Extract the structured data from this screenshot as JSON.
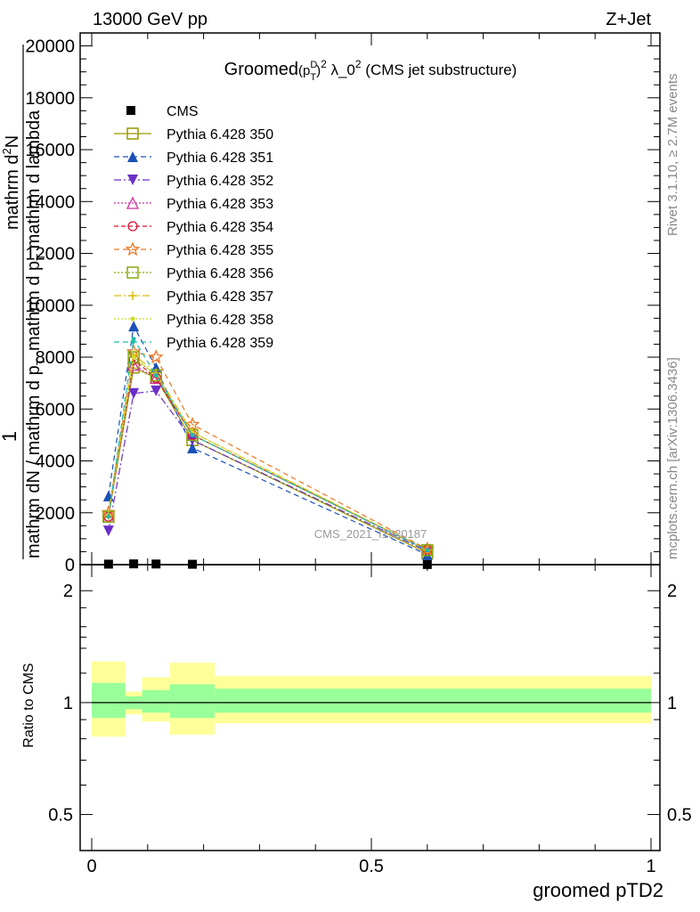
{
  "header": {
    "left": "13000 GeV pp",
    "right": "Z+Jet"
  },
  "plot_title": {
    "main": "Groomed",
    "formula_p": "(p",
    "formula_sup_D": "D",
    "formula_sub_T": "T",
    "formula_close": ")",
    "formula_sup_2": "2",
    "lambda_text": " λ_0",
    "lambda_sup": "2",
    "suffix": " (CMS jet substructure)"
  },
  "y_axis_label": {
    "one": "1",
    "frac_top": "mathrm dN / mathrm d p",
    "frac_top_sub": "T",
    "frac_bottom": "mathrm d",
    "frac_bottom_sup": "2",
    "frac_bottom_rest": "N",
    "frac_bottom_line2": "mathrm d p",
    "frac_bottom_line2_sub": "T",
    "frac_bottom_line2_rest": " mathrm d lambda"
  },
  "side_text": {
    "rivet": "Rivet 3.1.10, ≥ 2.7M events",
    "mcplots": "mcplots.cern.ch [arXiv:1306.3436]"
  },
  "watermark": "CMS_2021_I1920187",
  "ratio_ylabel": "Ratio to CMS",
  "x_axis_label": "groomed pTD2",
  "colors": {
    "cms": "#000000",
    "band_inner": "#99ff99",
    "band_outer": "#ffff99"
  },
  "chart_data": {
    "type": "line",
    "x": [
      0.03,
      0.075,
      0.115,
      0.18,
      0.6
    ],
    "x_edges": [
      0.0,
      0.06,
      0.09,
      0.14,
      0.22,
      1.0
    ],
    "xlim": [
      0,
      1
    ],
    "ylim": [
      0,
      20500
    ],
    "yticks": [
      0,
      2000,
      4000,
      6000,
      8000,
      10000,
      12000,
      14000,
      16000,
      18000,
      20000
    ],
    "yticklabels": [
      "0",
      "2000",
      "4000",
      "6000",
      "8000",
      "10000",
      "12000",
      "14000",
      "16000",
      "18000",
      "20000"
    ],
    "xticks": [
      0,
      0.5,
      1
    ],
    "xticklabels": [
      "0",
      "0.5",
      "1"
    ],
    "cms": {
      "name": "CMS",
      "values": [
        20,
        30,
        25,
        15,
        5
      ]
    },
    "series": [
      {
        "name": "Pythia 6.428 350",
        "color": "#999900",
        "dash": "",
        "marker": "square-open",
        "values": [
          1850,
          7600,
          7200,
          4800,
          450
        ]
      },
      {
        "name": "Pythia 6.428 351",
        "color": "#1a50b8",
        "dash": "6,4",
        "marker": "triangle-up",
        "values": [
          2650,
          9200,
          7600,
          4500,
          380
        ]
      },
      {
        "name": "Pythia 6.428 352",
        "color": "#6a2fc8",
        "dash": "8,3,2,3",
        "marker": "triangle-down",
        "values": [
          1300,
          6600,
          6700,
          4800,
          520
        ]
      },
      {
        "name": "Pythia 6.428 353",
        "color": "#cc3399",
        "dash": "2,2",
        "marker": "triangle-open",
        "values": [
          1850,
          7700,
          7200,
          5000,
          560
        ]
      },
      {
        "name": "Pythia 6.428 354",
        "color": "#dd1133",
        "dash": "5,3",
        "marker": "circle-open",
        "values": [
          1850,
          7900,
          7200,
          5000,
          580
        ]
      },
      {
        "name": "Pythia 6.428 355",
        "color": "#ee7722",
        "dash": "6,4",
        "marker": "star-open",
        "values": [
          2000,
          8200,
          8000,
          5400,
          600
        ]
      },
      {
        "name": "Pythia 6.428 356",
        "color": "#88aa11",
        "dash": "2,2",
        "marker": "square-open",
        "values": [
          1850,
          8000,
          7300,
          5000,
          560
        ]
      },
      {
        "name": "Pythia 6.428 357",
        "color": "#ddbb11",
        "dash": "8,3,2,3",
        "marker": "cross",
        "values": [
          1900,
          8100,
          7400,
          5100,
          560
        ]
      },
      {
        "name": "Pythia 6.428 358",
        "color": "#ccdd22",
        "dash": "2,2",
        "marker": "dot",
        "values": [
          1900,
          8000,
          7300,
          5100,
          560
        ]
      },
      {
        "name": "Pythia 6.428 359",
        "color": "#22bbaa",
        "dash": "6,4",
        "marker": "dot",
        "values": [
          1850,
          8700,
          7300,
          5000,
          560
        ]
      }
    ],
    "ratio": {
      "ylabel": "Ratio to CMS",
      "ylim": [
        0.4,
        2.35
      ],
      "yticks": [
        0.5,
        1,
        2
      ],
      "yticklabels": [
        "0.5",
        "1",
        "2"
      ],
      "inner_band": [
        [
          0.91,
          1.13
        ],
        [
          0.96,
          1.04
        ],
        [
          0.94,
          1.08
        ],
        [
          0.91,
          1.12
        ],
        [
          0.94,
          1.09
        ]
      ],
      "outer_band": [
        [
          0.81,
          1.29
        ],
        [
          0.93,
          1.07
        ],
        [
          0.89,
          1.17
        ],
        [
          0.82,
          1.28
        ],
        [
          0.88,
          1.18
        ]
      ]
    }
  }
}
